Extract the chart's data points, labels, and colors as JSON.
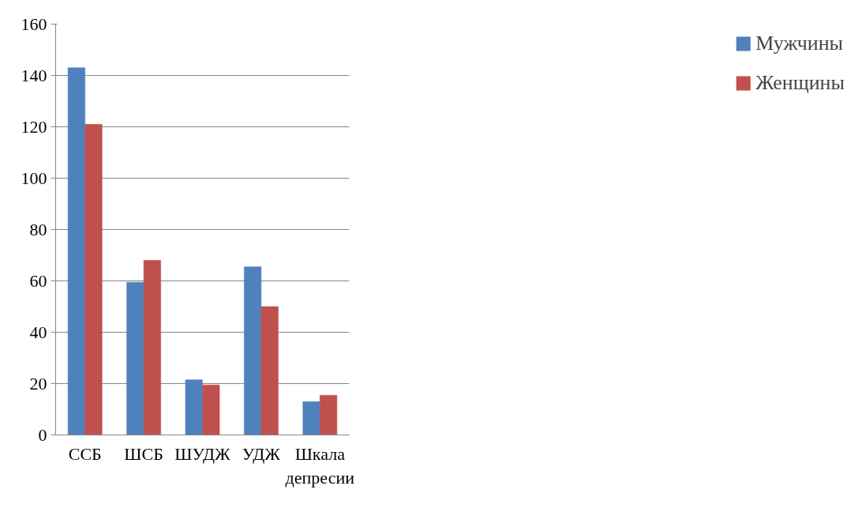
{
  "chart_data": {
    "type": "bar",
    "categories": [
      "ССБ",
      "ШСБ",
      "ШУДЖ",
      "УДЖ",
      "Шкала депресии"
    ],
    "series": [
      {
        "name": "Мужчины",
        "color": "#4f81bd",
        "values": [
          143,
          59.5,
          21.5,
          65.5,
          13
        ]
      },
      {
        "name": "Женщины",
        "color": "#c0504d",
        "values": [
          121,
          68,
          19.5,
          50,
          15.5
        ]
      }
    ],
    "ylim": [
      0,
      160
    ],
    "yticks": [
      0,
      20,
      40,
      60,
      80,
      100,
      120,
      140,
      160
    ],
    "grid": "y",
    "legend": "right"
  }
}
